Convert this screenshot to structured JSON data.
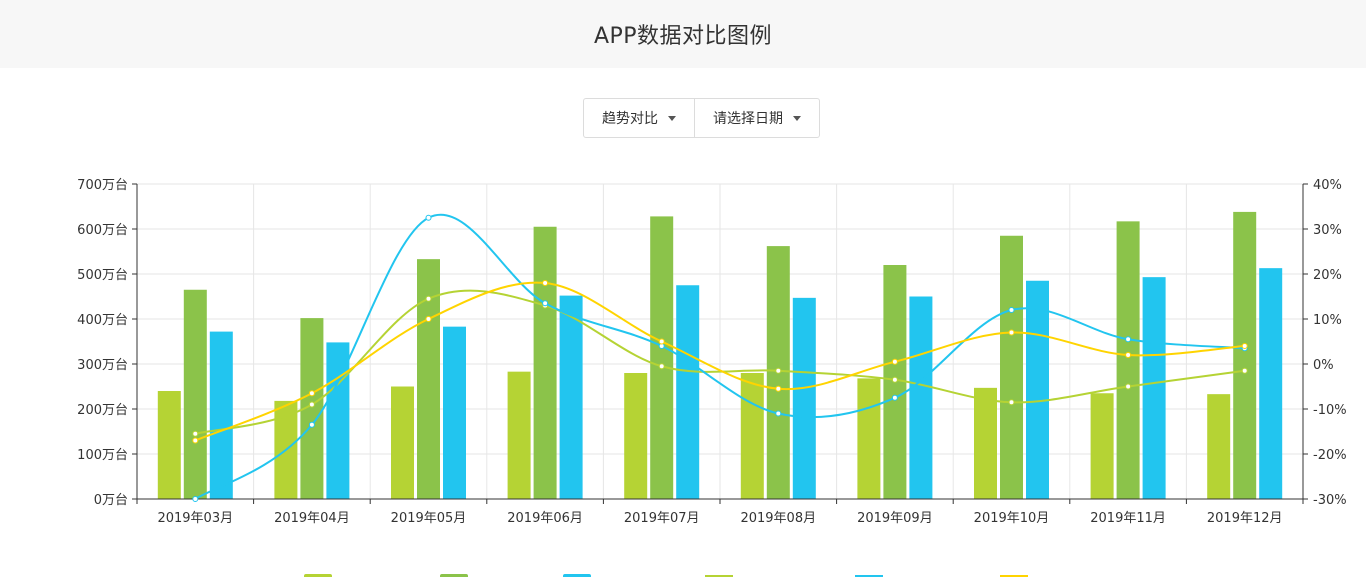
{
  "header": {
    "title": "APP数据对比图例"
  },
  "filters": [
    {
      "label": "趋势对比"
    },
    {
      "label": "请选择日期"
    }
  ],
  "colors": {
    "bar_a": "#b5d334",
    "bar_b": "#8bc34a",
    "bar_c": "#22c5ef",
    "line_a": "#b5d334",
    "line_b": "#22c5ef",
    "line_c": "#ffd400"
  },
  "chart_data": {
    "type": "bar",
    "categories": [
      "2019年03月",
      "2019年04月",
      "2019年05月",
      "2019年06月",
      "2019年07月",
      "2019年08月",
      "2019年09月",
      "2019年10月",
      "2019年11月",
      "2019年12月"
    ],
    "y_left": {
      "ticks": [
        "0万台",
        "100万台",
        "200万台",
        "300万台",
        "400万台",
        "500万台",
        "600万台",
        "700万台"
      ],
      "range": [
        0,
        700
      ]
    },
    "y_right": {
      "ticks": [
        "-30%",
        "-20%",
        "-10%",
        "0%",
        "10%",
        "20%",
        "30%",
        "40%"
      ],
      "range": [
        -30,
        40
      ]
    },
    "grid": true,
    "legend_position": "bottom",
    "bars": [
      {
        "values": [
          240,
          218,
          250,
          283,
          280,
          280,
          268,
          247,
          235,
          233
        ]
      },
      {
        "values": [
          465,
          402,
          533,
          605,
          628,
          562,
          520,
          585,
          617,
          638
        ]
      },
      {
        "values": [
          372,
          348,
          383,
          452,
          475,
          447,
          450,
          485,
          493,
          513
        ]
      }
    ],
    "lines": [
      {
        "values": [
          -15.5,
          -9,
          14.5,
          13,
          -0.5,
          -1.5,
          -3.5,
          -8.5,
          -5,
          -1.5
        ]
      },
      {
        "values": [
          -30,
          -13.5,
          32.5,
          13.5,
          4,
          -11,
          -7.5,
          12,
          5.5,
          3.5
        ]
      },
      {
        "values": [
          -17,
          -6.5,
          10,
          18,
          5,
          -5.5,
          0.5,
          7,
          2,
          4
        ]
      }
    ]
  }
}
